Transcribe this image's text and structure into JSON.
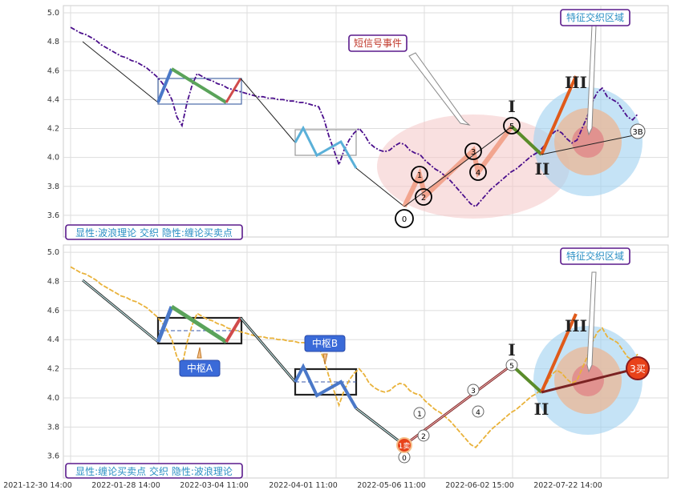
{
  "chart_data": [
    {
      "type": "line",
      "panel": "top",
      "title": "",
      "ylim": [
        3.45,
        5.05
      ],
      "yticks": [
        "3.6",
        "3.8",
        "4.0",
        "4.2",
        "4.4",
        "4.6",
        "4.8",
        "5.0"
      ],
      "legend_box": "显性:波浪理论 交织 隐性:缠论买卖点",
      "annotations": {
        "short_signal": "短信号事件",
        "feature_zone": "特征交织区域",
        "wave_labels": [
          "0",
          "1",
          "2",
          "3",
          "4",
          "5",
          "3B"
        ],
        "roman": [
          "I",
          "II",
          "III"
        ]
      },
      "series": [
        {
          "name": "",
          "values": [
            4.9,
            4.88,
            4.86,
            4.85,
            4.83,
            4.81,
            4.78,
            4.76,
            4.74,
            4.72,
            4.7,
            4.69,
            4.67,
            4.66,
            4.64,
            4.62,
            4.59,
            4.56,
            4.52,
            4.47,
            4.4,
            4.28,
            4.22,
            4.38,
            4.5,
            4.58,
            4.56,
            4.54,
            4.53,
            4.51,
            4.5,
            4.48,
            4.47,
            4.46,
            4.45,
            4.44,
            4.43,
            4.42,
            4.42,
            4.41,
            4.41,
            4.4,
            4.4,
            4.39,
            4.39,
            4.38,
            4.38,
            4.37,
            4.36,
            4.35,
            4.27,
            4.15,
            4.05,
            3.95,
            4.05,
            4.12,
            4.17,
            4.2,
            4.16,
            4.1,
            4.07,
            4.05,
            4.04,
            4.05,
            4.08,
            4.1,
            4.09,
            4.05,
            4.03,
            4.02,
            3.98,
            3.95,
            3.92,
            3.9,
            3.87,
            3.84,
            3.8,
            3.76,
            3.72,
            3.68,
            3.66,
            3.7,
            3.74,
            3.78,
            3.81,
            3.84,
            3.87,
            3.9,
            3.92,
            3.95,
            3.98,
            4.01,
            4.03,
            4.06,
            4.1,
            4.16,
            4.19,
            4.17,
            4.13,
            4.1,
            4.12,
            4.2,
            4.28,
            4.38,
            4.45,
            4.48,
            4.42,
            4.4,
            4.38,
            4.33,
            4.28,
            4.26,
            4.3
          ]
        }
      ]
    },
    {
      "type": "line",
      "panel": "bottom",
      "title": "",
      "ylim": [
        3.45,
        5.05
      ],
      "yticks": [
        "3.6",
        "3.8",
        "4.0",
        "4.2",
        "4.4",
        "4.6",
        "4.8",
        "5.0"
      ],
      "legend_box": "显性:缠论买卖点 交织 隐性:波浪理论",
      "annotations": {
        "center_a": "中枢A",
        "center_b": "中枢B",
        "feature_zone": "特征交织区域",
        "buy_1": "1卖",
        "buy_3": "3买",
        "wave_labels": [
          "0",
          "1",
          "2",
          "3",
          "4",
          "5"
        ],
        "roman": [
          "I",
          "II",
          "III"
        ]
      },
      "series": [
        {
          "name": "",
          "values": [
            4.9,
            4.88,
            4.86,
            4.85,
            4.83,
            4.81,
            4.78,
            4.76,
            4.74,
            4.72,
            4.7,
            4.69,
            4.67,
            4.66,
            4.64,
            4.62,
            4.59,
            4.56,
            4.52,
            4.47,
            4.4,
            4.28,
            4.22,
            4.38,
            4.5,
            4.58,
            4.56,
            4.54,
            4.53,
            4.51,
            4.5,
            4.48,
            4.47,
            4.46,
            4.45,
            4.44,
            4.43,
            4.42,
            4.42,
            4.41,
            4.41,
            4.4,
            4.4,
            4.39,
            4.39,
            4.38,
            4.38,
            4.37,
            4.36,
            4.35,
            4.27,
            4.15,
            4.05,
            3.95,
            4.05,
            4.12,
            4.17,
            4.2,
            4.16,
            4.1,
            4.07,
            4.05,
            4.04,
            4.05,
            4.08,
            4.1,
            4.09,
            4.05,
            4.03,
            4.02,
            3.98,
            3.95,
            3.92,
            3.9,
            3.87,
            3.84,
            3.8,
            3.76,
            3.72,
            3.68,
            3.66,
            3.7,
            3.74,
            3.78,
            3.81,
            3.84,
            3.87,
            3.9,
            3.92,
            3.95,
            3.98,
            4.01,
            4.03,
            4.06,
            4.1,
            4.16,
            4.19,
            4.17,
            4.13,
            4.1,
            4.12,
            4.2,
            4.28,
            4.38,
            4.45,
            4.48,
            4.42,
            4.4,
            4.38,
            4.33,
            4.28,
            4.26,
            4.3
          ]
        }
      ]
    }
  ],
  "xticks": [
    "2021-12-30 14:00",
    "2022-01-28 14:00",
    "2022-03-04 11:00",
    "2022-04-01 11:00",
    "2022-05-06 11:00",
    "2022-06-02 15:00",
    "2022-07-22 14:00"
  ],
  "colors": {
    "line_top": "#4b0f8c",
    "line_bottom": "#e9b23a",
    "zone": "#f4c7c7",
    "ann_border": "#5a1a8c",
    "ann_text": "#2a8fc4"
  }
}
